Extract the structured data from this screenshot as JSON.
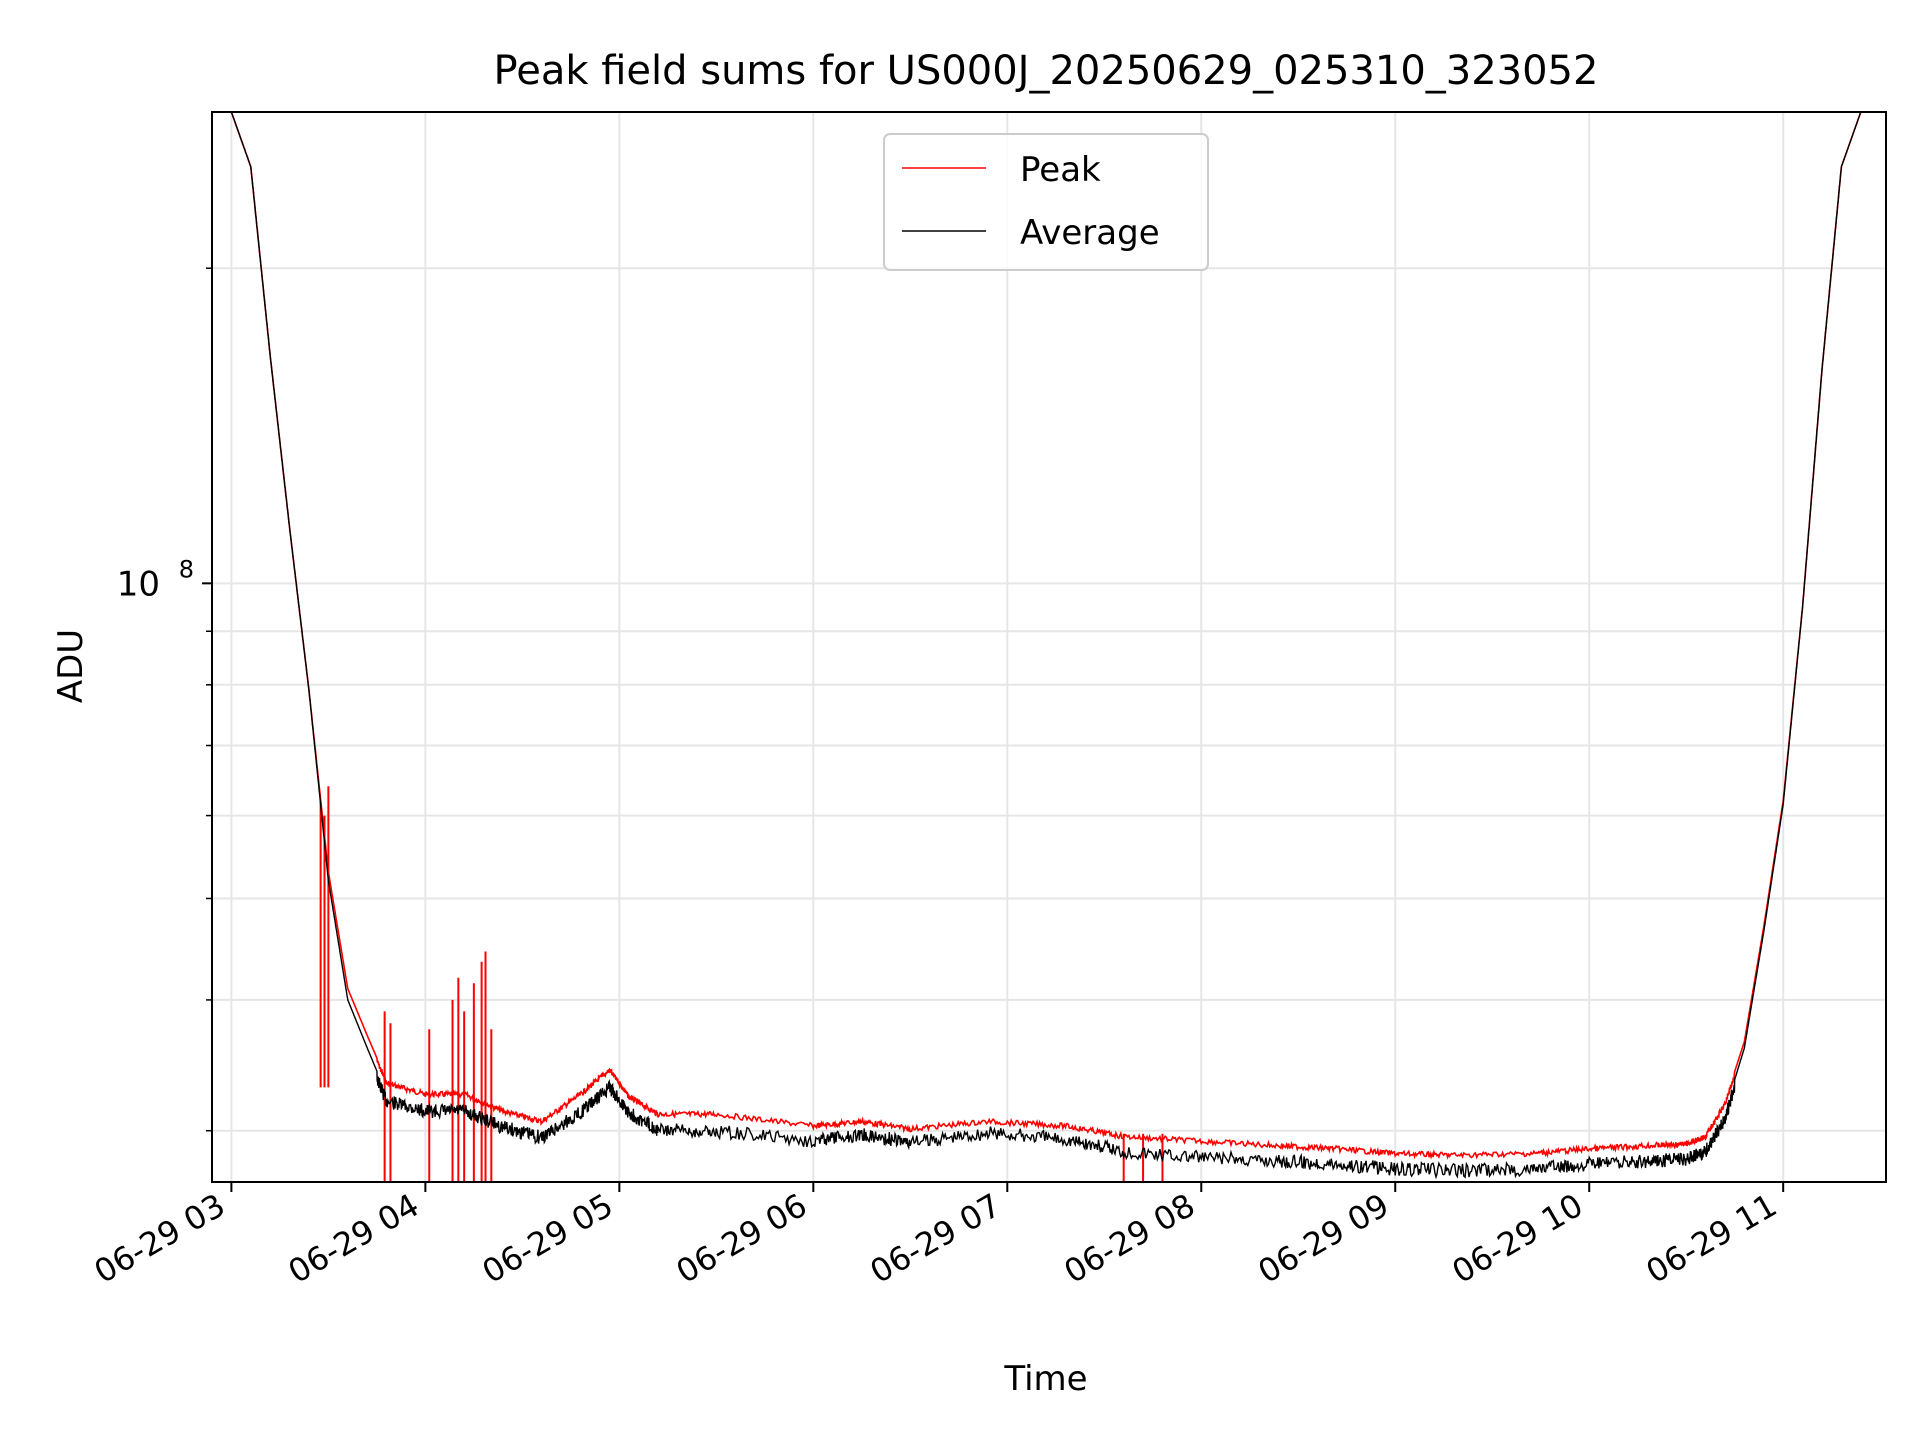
{
  "chart_data": {
    "type": "line",
    "title": "Peak field sums for US000J_20250629_025310_323052",
    "xlabel": "Time",
    "ylabel": "ADU",
    "y_scale": "log",
    "ylim": [
      26800000,
      282000000
    ],
    "xlim_hours": [
      2.9,
      11.53
    ],
    "x_ticks": [
      {
        "hour": 3,
        "label": "06-29 03"
      },
      {
        "hour": 4,
        "label": "06-29 04"
      },
      {
        "hour": 5,
        "label": "06-29 05"
      },
      {
        "hour": 6,
        "label": "06-29 06"
      },
      {
        "hour": 7,
        "label": "06-29 07"
      },
      {
        "hour": 8,
        "label": "06-29 08"
      },
      {
        "hour": 9,
        "label": "06-29 09"
      },
      {
        "hour": 10,
        "label": "06-29 10"
      },
      {
        "hour": 11,
        "label": "06-29 11"
      }
    ],
    "y_major_ticks": [
      {
        "value": 100000000,
        "base": "10",
        "exp": "8"
      }
    ],
    "y_minor_ticks": [
      30000000,
      40000000,
      50000000,
      60000000,
      70000000,
      80000000,
      90000000,
      200000000
    ],
    "grid": true,
    "legend_position": "top-center",
    "series": [
      {
        "name": "Peak",
        "color": "#ff0000",
        "x_hours": [
          3.0,
          3.1,
          3.2,
          3.3,
          3.4,
          3.5,
          3.6,
          3.7,
          3.8,
          4.0,
          4.2,
          4.4,
          4.6,
          4.8,
          4.95,
          5.05,
          5.2,
          5.5,
          6.0,
          6.25,
          6.5,
          6.9,
          7.3,
          7.6,
          8.0,
          8.4,
          8.7,
          9.0,
          9.3,
          9.7,
          10.0,
          10.3,
          10.5,
          10.6,
          10.7,
          10.8,
          10.9,
          11.0,
          11.1,
          11.2,
          11.3,
          11.4,
          11.5
        ],
        "values": [
          282000000,
          250000000,
          165000000,
          113000000,
          79000000,
          53000000,
          41000000,
          37000000,
          33500000,
          32700000,
          32700000,
          31500000,
          30800000,
          32700000,
          34500000,
          32500000,
          31300000,
          31300000,
          30500000,
          30800000,
          30300000,
          30800000,
          30500000,
          29800000,
          29500000,
          29200000,
          29000000,
          28700000,
          28600000,
          28700000,
          29000000,
          29200000,
          29300000,
          29800000,
          32000000,
          36500000,
          47000000,
          62000000,
          95000000,
          160000000,
          250000000,
          282000000,
          282000000
        ],
        "spikes": [
          {
            "hour": 3.46,
            "value": 62000000
          },
          {
            "hour": 3.48,
            "value": 60000000
          },
          {
            "hour": 3.5,
            "value": 64000000
          },
          {
            "hour": 3.79,
            "value": 39000000
          },
          {
            "hour": 3.82,
            "value": 38000000
          },
          {
            "hour": 4.02,
            "value": 37500000
          },
          {
            "hour": 4.14,
            "value": 40000000
          },
          {
            "hour": 4.17,
            "value": 42000000
          },
          {
            "hour": 4.2,
            "value": 39000000
          },
          {
            "hour": 4.25,
            "value": 41500000
          },
          {
            "hour": 4.29,
            "value": 43500000
          },
          {
            "hour": 4.31,
            "value": 44500000
          },
          {
            "hour": 4.34,
            "value": 37500000
          },
          {
            "hour": 7.6,
            "value": 29800000
          },
          {
            "hour": 7.7,
            "value": 29800000
          },
          {
            "hour": 7.8,
            "value": 29800000
          }
        ]
      },
      {
        "name": "Average",
        "color": "#000000",
        "x_hours": [
          3.0,
          3.1,
          3.2,
          3.3,
          3.4,
          3.5,
          3.6,
          3.7,
          3.8,
          4.0,
          4.2,
          4.4,
          4.6,
          4.8,
          4.95,
          5.05,
          5.2,
          5.5,
          6.0,
          6.25,
          6.5,
          6.9,
          7.3,
          7.6,
          8.0,
          8.4,
          8.7,
          9.0,
          9.3,
          9.7,
          10.0,
          10.3,
          10.5,
          10.6,
          10.7,
          10.8,
          10.9,
          11.0,
          11.1,
          11.2,
          11.3,
          11.4,
          11.5
        ],
        "values": [
          282000000,
          250000000,
          165000000,
          113000000,
          79000000,
          52000000,
          40000000,
          36000000,
          32500000,
          31800000,
          31800000,
          30700000,
          30000000,
          31700000,
          33500000,
          31700000,
          30500000,
          30400000,
          29800000,
          30200000,
          29700000,
          30300000,
          29900000,
          29100000,
          28700000,
          28500000,
          28300000,
          28000000,
          27900000,
          28000000,
          28300000,
          28500000,
          28600000,
          29100000,
          31300000,
          36000000,
          46500000,
          61500000,
          95000000,
          160000000,
          250000000,
          282000000,
          282000000
        ]
      }
    ]
  }
}
